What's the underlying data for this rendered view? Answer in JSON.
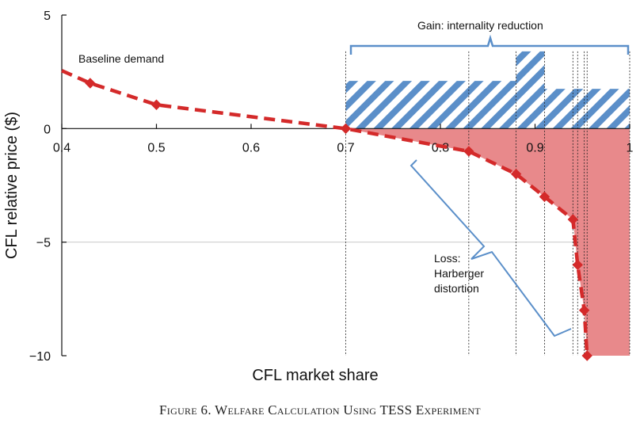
{
  "chart_data": {
    "type": "line",
    "title": "",
    "xlabel": "CFL market share",
    "ylabel": "CFL relative price ($)",
    "xlim": [
      0.4,
      1.0
    ],
    "ylim": [
      -10,
      5
    ],
    "x_ticks": [
      "0.4",
      "0.5",
      "0.6",
      "0.7",
      "0.8",
      "0.9",
      "1"
    ],
    "y_ticks": [
      "5",
      "0",
      "−5",
      "−10"
    ],
    "series": [
      {
        "name": "Baseline demand",
        "style": "dashed-with-diamond-markers",
        "color": "#d42a2a",
        "points": [
          {
            "x": 0.43,
            "y": 2.0
          },
          {
            "x": 0.5,
            "y": 1.05
          },
          {
            "x": 0.7,
            "y": 0.0
          },
          {
            "x": 0.83,
            "y": -1.0
          },
          {
            "x": 0.88,
            "y": -2.0
          },
          {
            "x": 0.91,
            "y": -3.0
          },
          {
            "x": 0.94,
            "y": -4.0
          },
          {
            "x": 0.945,
            "y": -6.0
          },
          {
            "x": 0.952,
            "y": -8.0
          },
          {
            "x": 0.955,
            "y": -10.0
          }
        ]
      }
    ],
    "gain_bars": [
      {
        "x0": 0.7,
        "x1": 0.88,
        "height": 2.1
      },
      {
        "x0": 0.88,
        "x1": 0.91,
        "height": 3.4
      },
      {
        "x0": 0.91,
        "x1": 1.0,
        "height": 1.75
      }
    ],
    "gain_color": "#5b8fc9",
    "loss_color": "#e8898b",
    "annotations": {
      "baseline": "Baseline demand",
      "gain": "Gain: internality reduction",
      "loss_line1": "Loss:",
      "loss_line2": "Harberger",
      "loss_line3": "distortion"
    }
  },
  "caption": "Figure 6. Welfare Calculation Using TESS Experiment"
}
